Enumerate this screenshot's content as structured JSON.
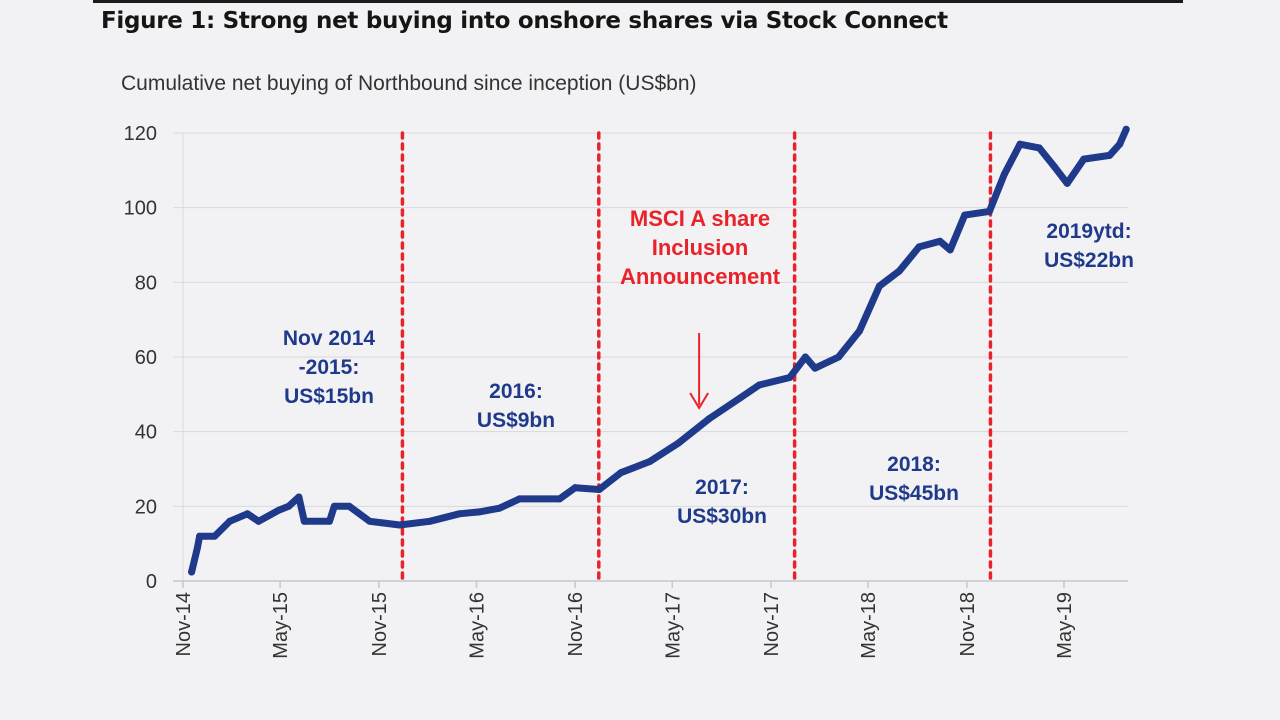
{
  "chart_data": {
    "type": "line",
    "title": "Figure 1: Strong net buying into onshore shares via Stock Connect",
    "subtitle": "Cumulative net buying of Northbound since inception (US$bn)",
    "xlabel": "",
    "ylabel": "",
    "ylim": [
      0,
      120
    ],
    "yticks": [
      0,
      20,
      40,
      60,
      80,
      100,
      120
    ],
    "xlim": [
      "2014-11-01",
      "2019-09-01"
    ],
    "xticks": [
      {
        "date": "2014-11-01",
        "label": "Nov-14"
      },
      {
        "date": "2015-05-01",
        "label": "May-15"
      },
      {
        "date": "2015-11-01",
        "label": "Nov-15"
      },
      {
        "date": "2016-05-01",
        "label": "May-16"
      },
      {
        "date": "2016-11-01",
        "label": "Nov-16"
      },
      {
        "date": "2017-05-01",
        "label": "May-17"
      },
      {
        "date": "2017-11-01",
        "label": "Nov-17"
      },
      {
        "date": "2018-05-01",
        "label": "May-18"
      },
      {
        "date": "2018-11-01",
        "label": "Nov-18"
      },
      {
        "date": "2019-05-01",
        "label": "May-19"
      }
    ],
    "grid": "horizontal",
    "colors": {
      "line": "#1f3a8a",
      "divider": "#e8232a",
      "annotation": "#1f3a8a",
      "highlight": "#e8232a",
      "grid": "#d9d9dc"
    },
    "series": [
      {
        "x": [
          "2014-11-17",
          "2014-11-28",
          "2014-12-02",
          "2014-12-30",
          "2015-01-27",
          "2015-03-01",
          "2015-03-22",
          "2015-04-29",
          "2015-05-17",
          "2015-06-05",
          "2015-06-15",
          "2015-08-01",
          "2015-08-10",
          "2015-09-07",
          "2015-10-15",
          "2015-12-10",
          "2016-02-04",
          "2016-03-30",
          "2016-05-06",
          "2016-06-13",
          "2016-07-20",
          "2016-10-03",
          "2016-11-01",
          "2016-12-16",
          "2017-01-25",
          "2017-03-20",
          "2017-05-13",
          "2017-07-09",
          "2017-09-04",
          "2017-10-10",
          "2017-12-06",
          "2018-01-04",
          "2018-01-22",
          "2018-03-07",
          "2018-04-15",
          "2018-05-22",
          "2018-06-28",
          "2018-08-04",
          "2018-09-12",
          "2018-10-01",
          "2018-10-28",
          "2018-12-13",
          "2019-01-10",
          "2019-02-08",
          "2019-03-16",
          "2019-04-13",
          "2019-05-07",
          "2019-06-07",
          "2019-07-25",
          "2019-08-13",
          "2019-08-25"
        ],
        "values": [
          2.4,
          9,
          12,
          12,
          16,
          18,
          16,
          19,
          20,
          22.5,
          16,
          16,
          20,
          20,
          16,
          15,
          16,
          18,
          18.5,
          19.5,
          22,
          22,
          25,
          24.5,
          29,
          32,
          37,
          43.5,
          49,
          52.5,
          54.5,
          60,
          57,
          60,
          67,
          79,
          83,
          89.5,
          91,
          88.7,
          98,
          99,
          109,
          117,
          116,
          111,
          106.5,
          113,
          114,
          117,
          121
        ]
      }
    ],
    "dividers": [
      "2015-12-15",
      "2016-12-15",
      "2017-12-15",
      "2018-12-15"
    ],
    "annotations": [
      {
        "lines": [
          "Nov 2014",
          "-2015:",
          "US$15bn"
        ]
      },
      {
        "lines": [
          "2016:",
          "US$9bn"
        ]
      },
      {
        "lines": [
          "2017:",
          "US$30bn"
        ]
      },
      {
        "lines": [
          "2018:",
          "US$45bn"
        ]
      },
      {
        "lines": [
          "2019ytd:",
          "US$22bn"
        ]
      }
    ],
    "highlight": {
      "lines": [
        "MSCI A share",
        "Inclusion",
        "Announcement"
      ],
      "arrow_date": "2017-06-20"
    }
  }
}
